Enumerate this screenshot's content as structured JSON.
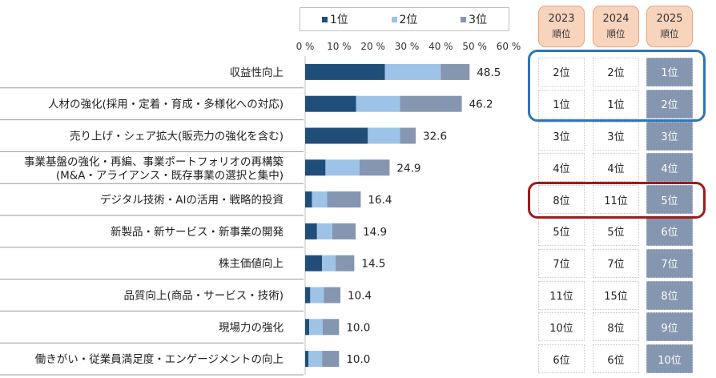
{
  "chart_data": {
    "type": "bar",
    "orientation": "horizontal",
    "stacked": true,
    "categories": [
      "収益性向上",
      "人材の強化(採用・定着・育成・多様化への対応)",
      "売り上げ・シェア拡大(販売力の強化を含む)",
      "事業基盤の強化・再編、事業ポートフォリオの再構築",
      "デジタル技術・AIの活用・戦略的投資",
      "新製品・新サービス・新事業の開発",
      "株主価値向上",
      "品質向上(商品・サービス・技術)",
      "現場力の強化",
      "働きがい・従業員満足度・エンゲージメントの向上"
    ],
    "category_sublabels": [
      "",
      "",
      "",
      "(M&A・アライアンス・既存事業の選択と集中)",
      "",
      "",
      "",
      "",
      "",
      ""
    ],
    "series": [
      {
        "name": "1位",
        "color": "#1f4e79",
        "values": [
          23.5,
          15.0,
          18.5,
          6.0,
          2.0,
          3.5,
          5.0,
          1.5,
          1.2,
          1.0
        ]
      },
      {
        "name": "2位",
        "color": "#9dc3e6",
        "values": [
          16.5,
          13.0,
          9.5,
          10.0,
          4.5,
          4.5,
          4.0,
          4.0,
          4.0,
          4.0
        ]
      },
      {
        "name": "3位",
        "color": "#8496b0",
        "values": [
          8.5,
          18.2,
          4.6,
          8.9,
          9.9,
          6.9,
          5.5,
          4.9,
          4.8,
          5.0
        ]
      }
    ],
    "totals": [
      "48.5",
      "46.2",
      "32.6",
      "24.9",
      "16.4",
      "14.9",
      "14.5",
      "10.4",
      "10.0",
      "10.0"
    ],
    "xlim": [
      0,
      60
    ],
    "xticks": [
      "0 %",
      "10 %",
      "20 %",
      "30 %",
      "40 %",
      "50 %",
      "60 %"
    ],
    "legend_position": "top"
  },
  "rank_table": {
    "headers": [
      {
        "year": "2023",
        "label": "順位"
      },
      {
        "year": "2024",
        "label": "順位"
      },
      {
        "year": "2025",
        "label": "順位"
      }
    ],
    "rows": [
      [
        "2位",
        "2位",
        "1位"
      ],
      [
        "1位",
        "1位",
        "2位"
      ],
      [
        "3位",
        "3位",
        "3位"
      ],
      [
        "4位",
        "4位",
        "4位"
      ],
      [
        "8位",
        "11位",
        "5位"
      ],
      [
        "5位",
        "5位",
        "6位"
      ],
      [
        "7位",
        "7位",
        "7位"
      ],
      [
        "11位",
        "15位",
        "8位"
      ],
      [
        "10位",
        "8位",
        "9位"
      ],
      [
        "6位",
        "6位",
        "10位"
      ]
    ],
    "highlight_colors": {
      "top": "#2e75b6",
      "rising": "#9e1b1b"
    }
  }
}
